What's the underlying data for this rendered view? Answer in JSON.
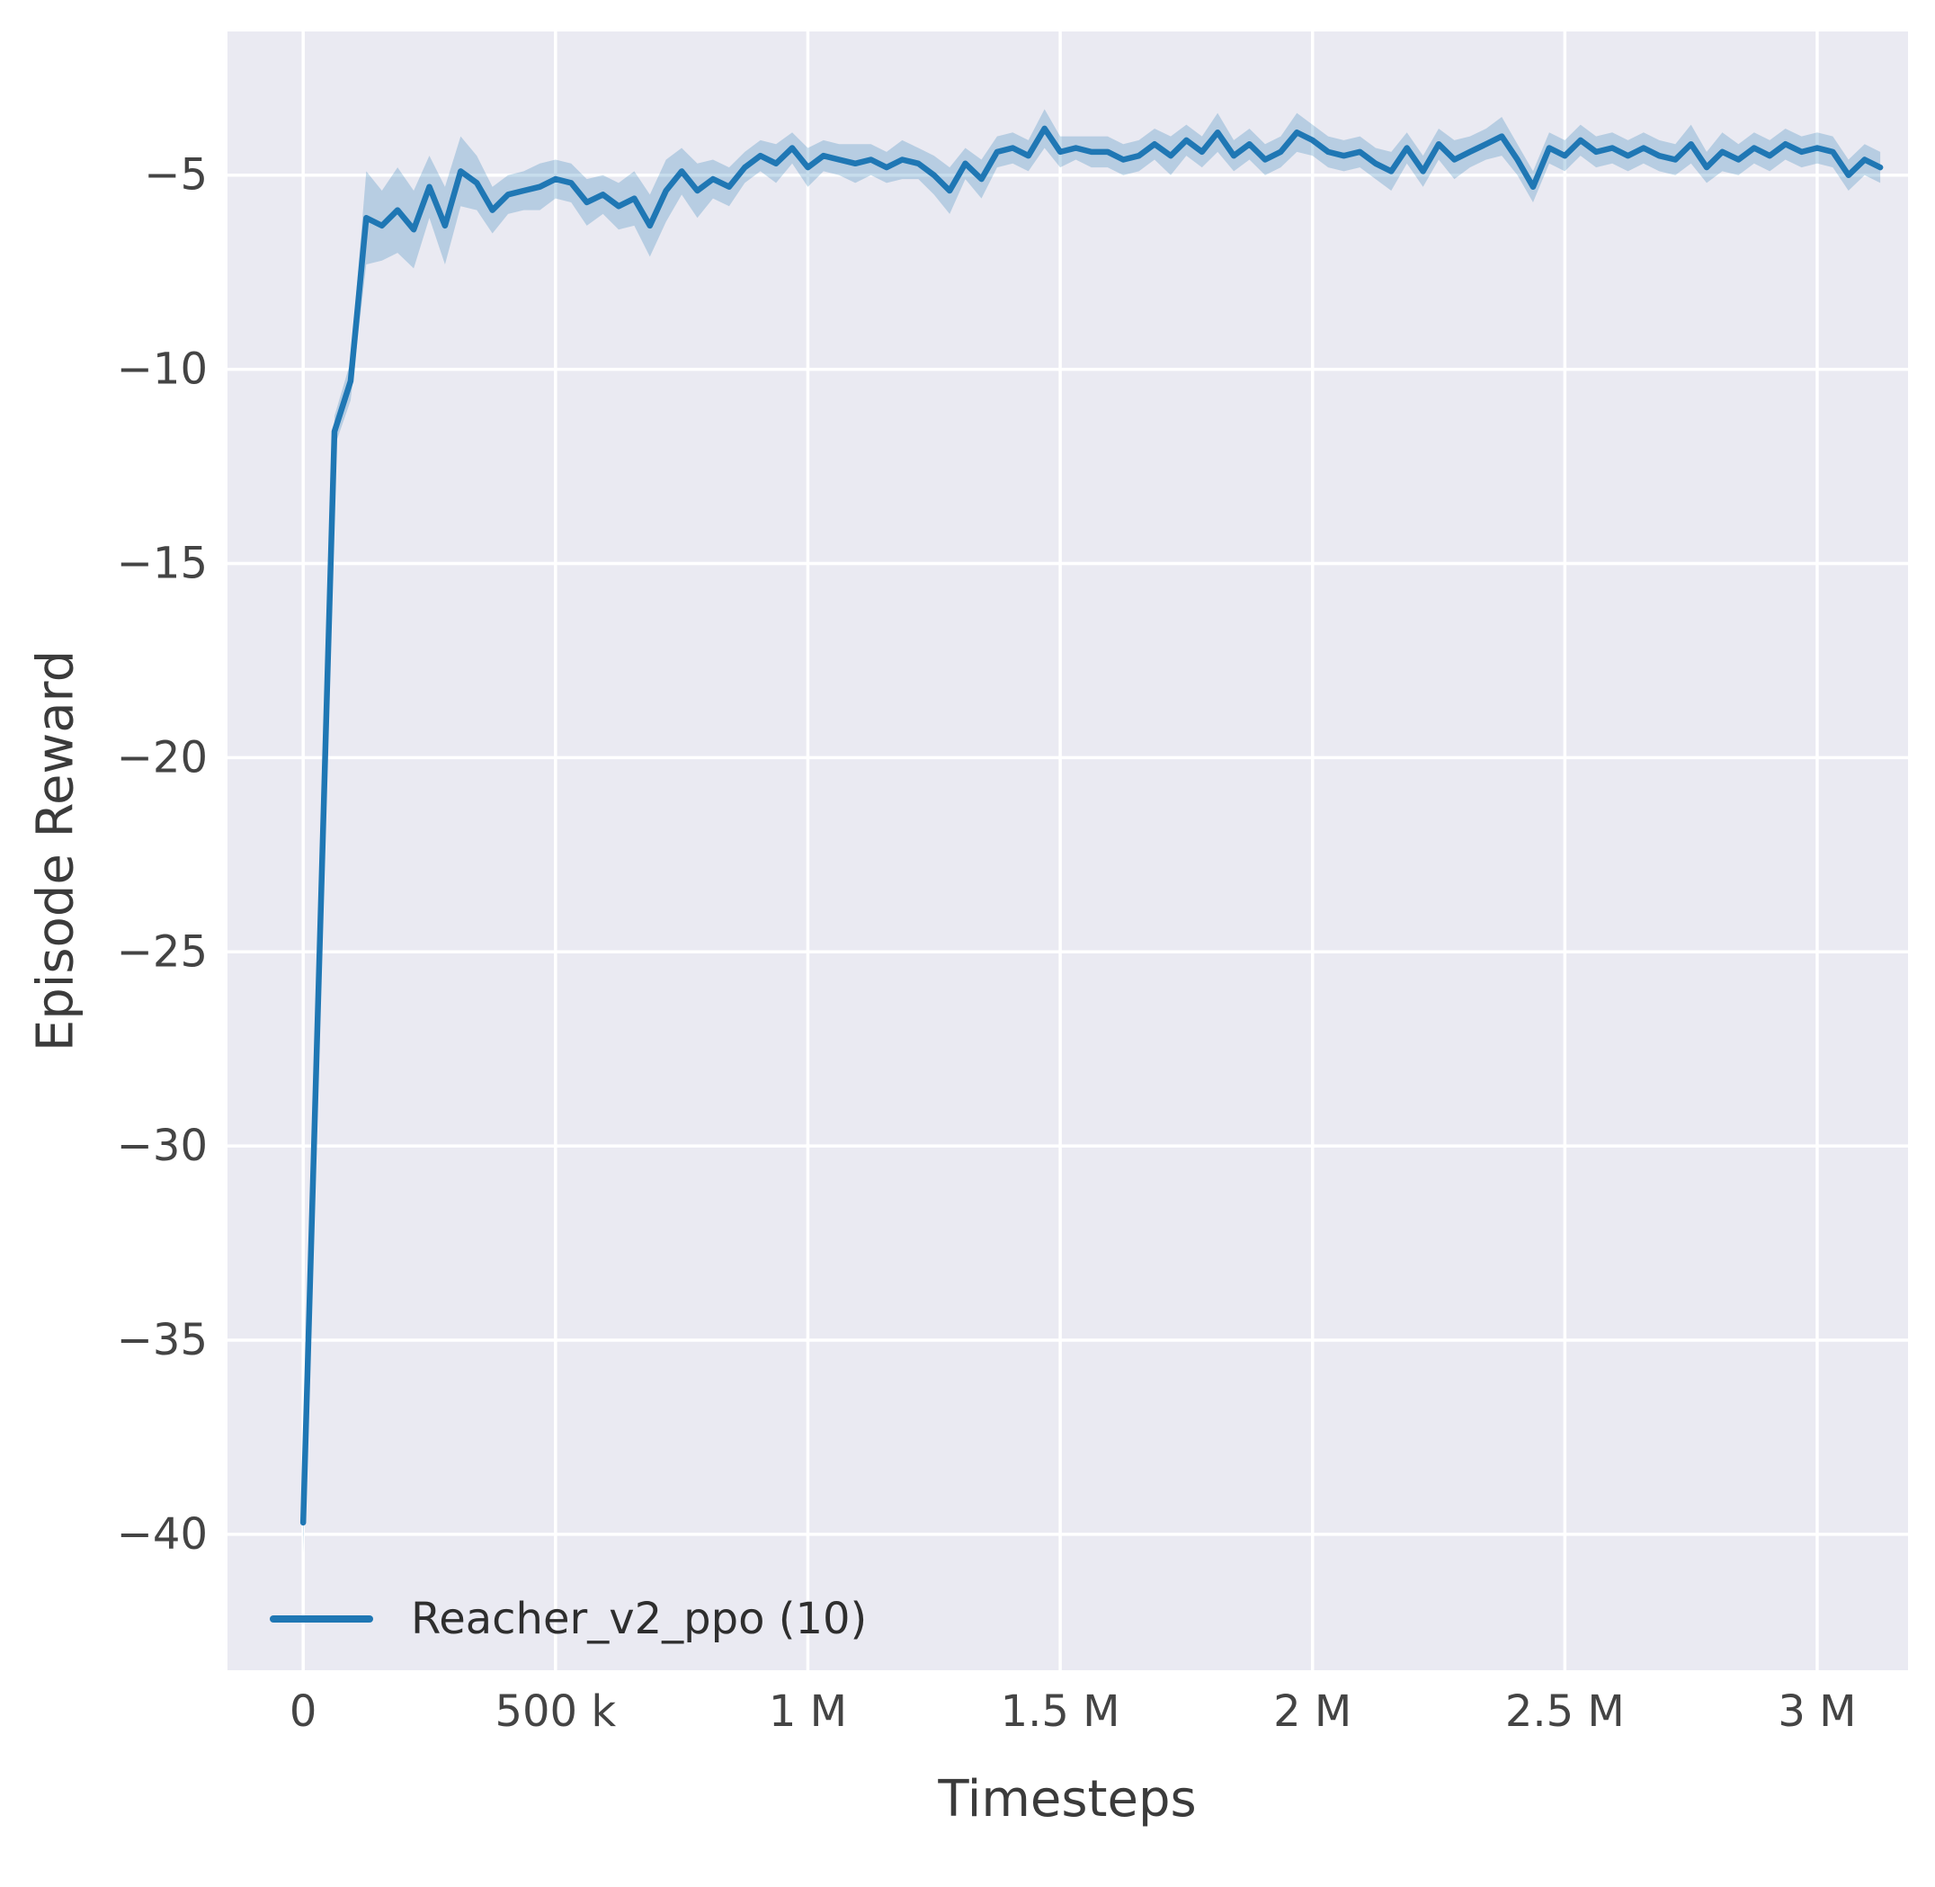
{
  "chart_data": {
    "type": "line",
    "title": "",
    "xlabel": "Timesteps",
    "ylabel": "Episode Reward",
    "xlim": [
      -150000,
      3180000
    ],
    "ylim": [
      -43.5,
      -1.3
    ],
    "grid": true,
    "legend_position": "lower left",
    "colors": {
      "plot_background": "#eaeaf2",
      "grid": "#ffffff",
      "line": "#1f77b4",
      "band": "#1f77b4",
      "band_alpha": 0.25,
      "tick_text": "#444444",
      "label_text": "#3b3b3b"
    },
    "xticks": [
      {
        "v": 0,
        "label": "0"
      },
      {
        "v": 500000,
        "label": "500 k"
      },
      {
        "v": 1000000,
        "label": "1 M"
      },
      {
        "v": 1500000,
        "label": "1.5 M"
      },
      {
        "v": 2000000,
        "label": "2 M"
      },
      {
        "v": 2500000,
        "label": "2.5 M"
      },
      {
        "v": 3000000,
        "label": "3 M"
      }
    ],
    "yticks": [
      {
        "v": -5,
        "label": "−5"
      },
      {
        "v": -10,
        "label": "−10"
      },
      {
        "v": -15,
        "label": "−15"
      },
      {
        "v": -20,
        "label": "−20"
      },
      {
        "v": -25,
        "label": "−25"
      },
      {
        "v": -30,
        "label": "−30"
      },
      {
        "v": -35,
        "label": "−35"
      },
      {
        "v": -40,
        "label": "−40"
      }
    ],
    "series": [
      {
        "name": "Reacher_v2_ppo (10)",
        "points": [
          [
            0,
            -39.7,
            0.8
          ],
          [
            62000,
            -11.6,
            0.4
          ],
          [
            94000,
            -10.3,
            0.5
          ],
          [
            125000,
            -6.1,
            1.2
          ],
          [
            156000,
            -6.3,
            0.9
          ],
          [
            187000,
            -5.9,
            1.1
          ],
          [
            219000,
            -6.4,
            1.0
          ],
          [
            250000,
            -5.3,
            0.8
          ],
          [
            281000,
            -6.3,
            1.0
          ],
          [
            312000,
            -4.9,
            0.9
          ],
          [
            344000,
            -5.2,
            0.7
          ],
          [
            375000,
            -5.9,
            0.6
          ],
          [
            406000,
            -5.5,
            0.5
          ],
          [
            437000,
            -5.4,
            0.5
          ],
          [
            469000,
            -5.3,
            0.6
          ],
          [
            500000,
            -5.1,
            0.5
          ],
          [
            531000,
            -5.2,
            0.5
          ],
          [
            562000,
            -5.7,
            0.6
          ],
          [
            594000,
            -5.5,
            0.5
          ],
          [
            625000,
            -5.8,
            0.6
          ],
          [
            656000,
            -5.6,
            0.7
          ],
          [
            687000,
            -6.3,
            0.8
          ],
          [
            719000,
            -5.4,
            0.8
          ],
          [
            750000,
            -4.9,
            0.6
          ],
          [
            781000,
            -5.4,
            0.7
          ],
          [
            812000,
            -5.1,
            0.5
          ],
          [
            844000,
            -5.3,
            0.5
          ],
          [
            875000,
            -4.8,
            0.4
          ],
          [
            906000,
            -4.5,
            0.4
          ],
          [
            937000,
            -4.7,
            0.5
          ],
          [
            969000,
            -4.3,
            0.4
          ],
          [
            1000000,
            -4.8,
            0.5
          ],
          [
            1031000,
            -4.5,
            0.4
          ],
          [
            1062000,
            -4.6,
            0.4
          ],
          [
            1094000,
            -4.7,
            0.5
          ],
          [
            1125000,
            -4.6,
            0.4
          ],
          [
            1156000,
            -4.8,
            0.4
          ],
          [
            1187000,
            -4.6,
            0.5
          ],
          [
            1219000,
            -4.7,
            0.4
          ],
          [
            1250000,
            -5.0,
            0.5
          ],
          [
            1281000,
            -5.4,
            0.6
          ],
          [
            1312000,
            -4.7,
            0.4
          ],
          [
            1344000,
            -5.1,
            0.5
          ],
          [
            1375000,
            -4.4,
            0.4
          ],
          [
            1406000,
            -4.3,
            0.4
          ],
          [
            1437000,
            -4.5,
            0.4
          ],
          [
            1469000,
            -3.8,
            0.5
          ],
          [
            1500000,
            -4.4,
            0.4
          ],
          [
            1531000,
            -4.3,
            0.3
          ],
          [
            1562000,
            -4.4,
            0.4
          ],
          [
            1594000,
            -4.4,
            0.4
          ],
          [
            1625000,
            -4.6,
            0.4
          ],
          [
            1656000,
            -4.5,
            0.4
          ],
          [
            1687000,
            -4.2,
            0.4
          ],
          [
            1719000,
            -4.5,
            0.5
          ],
          [
            1750000,
            -4.1,
            0.4
          ],
          [
            1781000,
            -4.4,
            0.4
          ],
          [
            1812000,
            -3.9,
            0.5
          ],
          [
            1844000,
            -4.5,
            0.4
          ],
          [
            1875000,
            -4.2,
            0.4
          ],
          [
            1906000,
            -4.6,
            0.4
          ],
          [
            1937000,
            -4.4,
            0.4
          ],
          [
            1969000,
            -3.9,
            0.5
          ],
          [
            2000000,
            -4.1,
            0.4
          ],
          [
            2031000,
            -4.4,
            0.4
          ],
          [
            2062000,
            -4.5,
            0.4
          ],
          [
            2094000,
            -4.4,
            0.4
          ],
          [
            2125000,
            -4.7,
            0.4
          ],
          [
            2156000,
            -4.9,
            0.5
          ],
          [
            2187000,
            -4.3,
            0.4
          ],
          [
            2219000,
            -4.9,
            0.4
          ],
          [
            2250000,
            -4.2,
            0.4
          ],
          [
            2281000,
            -4.6,
            0.5
          ],
          [
            2312000,
            -4.4,
            0.4
          ],
          [
            2344000,
            -4.2,
            0.4
          ],
          [
            2375000,
            -4.0,
            0.5
          ],
          [
            2406000,
            -4.6,
            0.4
          ],
          [
            2437000,
            -5.3,
            0.4
          ],
          [
            2469000,
            -4.3,
            0.4
          ],
          [
            2500000,
            -4.5,
            0.4
          ],
          [
            2531000,
            -4.1,
            0.4
          ],
          [
            2562000,
            -4.4,
            0.4
          ],
          [
            2594000,
            -4.3,
            0.4
          ],
          [
            2625000,
            -4.5,
            0.4
          ],
          [
            2656000,
            -4.3,
            0.4
          ],
          [
            2687000,
            -4.5,
            0.4
          ],
          [
            2719000,
            -4.6,
            0.4
          ],
          [
            2750000,
            -4.2,
            0.5
          ],
          [
            2781000,
            -4.8,
            0.4
          ],
          [
            2812000,
            -4.4,
            0.5
          ],
          [
            2844000,
            -4.6,
            0.4
          ],
          [
            2875000,
            -4.3,
            0.4
          ],
          [
            2906000,
            -4.5,
            0.4
          ],
          [
            2937000,
            -4.2,
            0.4
          ],
          [
            2969000,
            -4.4,
            0.4
          ],
          [
            3000000,
            -4.3,
            0.4
          ],
          [
            3031000,
            -4.4,
            0.4
          ],
          [
            3062000,
            -5.0,
            0.4
          ],
          [
            3094000,
            -4.6,
            0.4
          ],
          [
            3125000,
            -4.8,
            0.4
          ]
        ]
      }
    ]
  }
}
